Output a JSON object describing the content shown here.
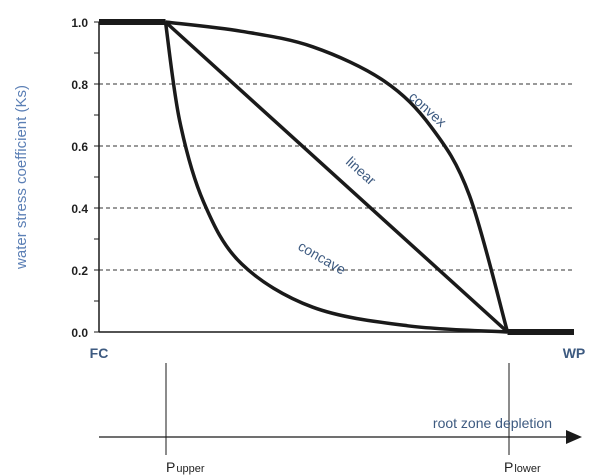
{
  "chart_data": {
    "type": "line",
    "ylabel": "water stress coefficient (Ks)",
    "yticks": [
      "1.0",
      "0.8",
      "0.6",
      "0.4",
      "0.2",
      "0.0"
    ],
    "ylim": [
      0,
      1
    ],
    "xlim": [
      0,
      1
    ],
    "x_start_label": "FC",
    "x_end_label": "WP",
    "grid": "dashed horizontal at 0.2, 0.4, 0.6, 0.8",
    "p_upper": 0.14,
    "p_lower": 0.86,
    "series": [
      {
        "name": "convex",
        "x": [
          0.14,
          0.3,
          0.45,
          0.6,
          0.7,
          0.78,
          0.86
        ],
        "y": [
          1.0,
          0.97,
          0.92,
          0.81,
          0.66,
          0.44,
          0.0
        ]
      },
      {
        "name": "linear",
        "x": [
          0.14,
          0.86
        ],
        "y": [
          1.0,
          0.0
        ]
      },
      {
        "name": "concave",
        "x": [
          0.14,
          0.17,
          0.22,
          0.3,
          0.45,
          0.65,
          0.86
        ],
        "y": [
          1.0,
          0.68,
          0.42,
          0.22,
          0.08,
          0.02,
          0.0
        ]
      }
    ]
  },
  "axis": {
    "depletion_label": "root zone depletion",
    "p_upper_main": "P",
    "p_upper_sub": "upper",
    "p_lower_main": "P",
    "p_lower_sub": "lower"
  },
  "colors": {
    "curve": "#1a1a1a",
    "label": "#3d5a80",
    "ylabel": "#5b7fb5"
  }
}
